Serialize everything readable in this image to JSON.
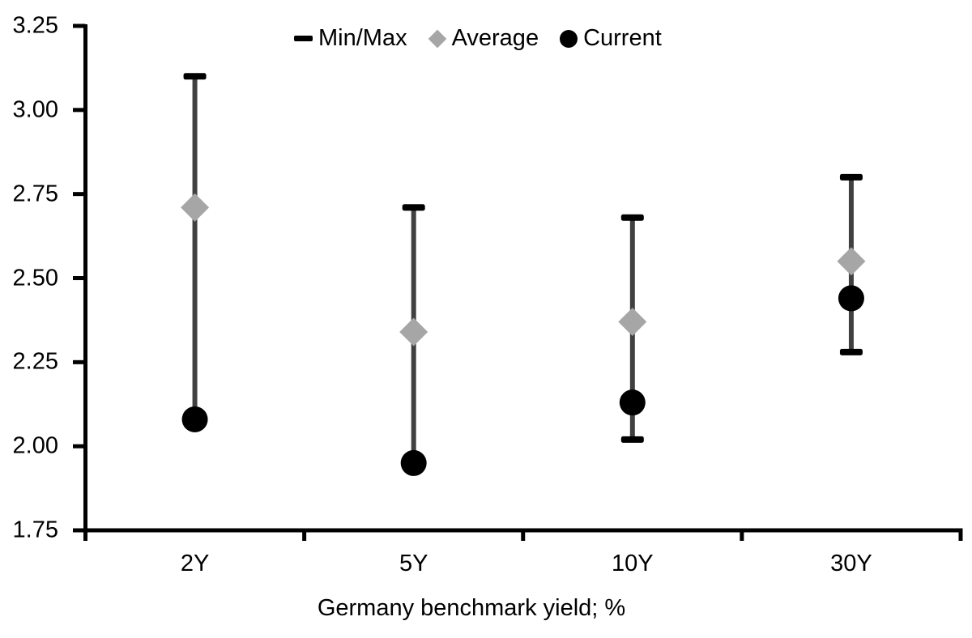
{
  "chart_data": {
    "type": "range_dot",
    "title": "",
    "xlabel": "Germany benchmark yield; %",
    "ylabel": "",
    "categories": [
      "2Y",
      "5Y",
      "10Y",
      "30Y"
    ],
    "y_axis": {
      "min": 1.75,
      "max": 3.25,
      "step": 0.25,
      "tick_labels": [
        "3.25",
        "3.00",
        "2.75",
        "2.50",
        "2.25",
        "2.00",
        "1.75"
      ]
    },
    "grid": false,
    "legend": {
      "position": "top-center",
      "items": [
        {
          "label": "Min/Max",
          "marker": "dash-icon",
          "color": "#000000"
        },
        {
          "label": "Average",
          "marker": "diamond-icon",
          "color": "#a6a6a6"
        },
        {
          "label": "Current",
          "marker": "circle-icon",
          "color": "#000000"
        }
      ]
    },
    "series": [
      {
        "category": "2Y",
        "min": 2.08,
        "max": 3.1,
        "average": 2.71,
        "current": 2.08
      },
      {
        "category": "5Y",
        "min": 1.95,
        "max": 2.71,
        "average": 2.34,
        "current": 1.95
      },
      {
        "category": "10Y",
        "min": 2.02,
        "max": 2.68,
        "average": 2.37,
        "current": 2.13
      },
      {
        "category": "30Y",
        "min": 2.28,
        "max": 2.8,
        "average": 2.55,
        "current": 2.44
      }
    ],
    "colors": {
      "axis": "#000000",
      "text": "#000000",
      "range_line": "#404040",
      "cap": "#000000",
      "average_marker": "#a6a6a6",
      "current_marker": "#000000",
      "background": "#ffffff"
    }
  }
}
